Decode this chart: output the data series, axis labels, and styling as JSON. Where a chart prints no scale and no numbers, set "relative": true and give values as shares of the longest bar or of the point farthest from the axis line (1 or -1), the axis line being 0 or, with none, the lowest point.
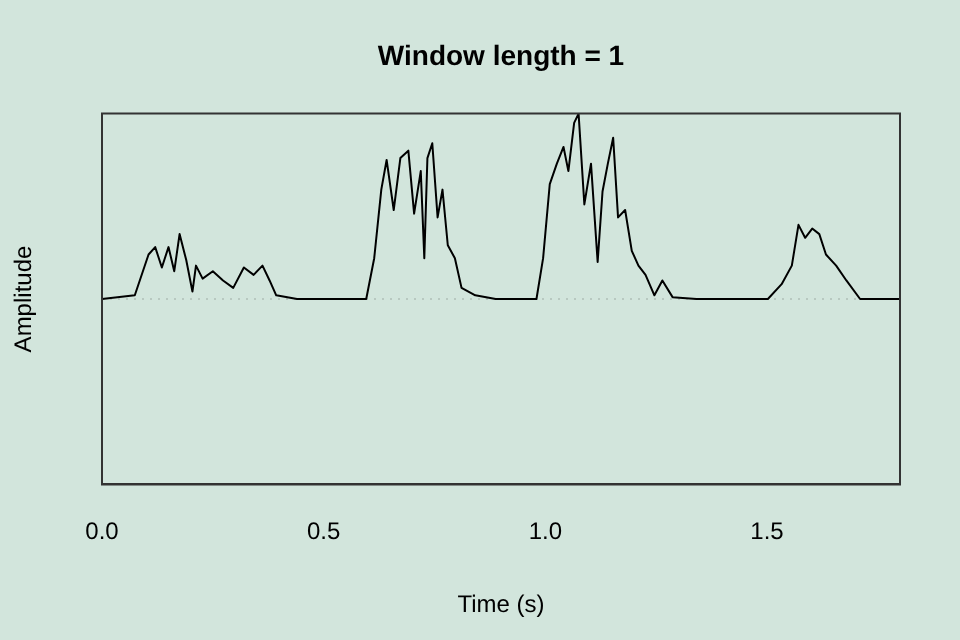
{
  "chart_data": {
    "type": "line",
    "title": "Window length = 1",
    "xlabel": "Time (s)",
    "ylabel": "Amplitude",
    "relative": true,
    "tick_labels": "x",
    "grid": false,
    "legend": false,
    "marker": "none",
    "line_style": "solid",
    "xlim": [
      0,
      1.8
    ],
    "xticks": [
      {
        "value": 0,
        "label": "0.0"
      },
      0.5,
      {
        "value": 1,
        "label": "1.0"
      },
      1.5
    ],
    "ref_lines": [
      {
        "axis": "y",
        "value": 0,
        "color": "#b8c8c0",
        "line_style": "dotted"
      }
    ],
    "series": [
      {
        "color": "#000000",
        "x": [
          0,
          0.074,
          0.105,
          0.12,
          0.135,
          0.15,
          0.163,
          0.175,
          0.19,
          0.204,
          0.212,
          0.227,
          0.25,
          0.273,
          0.296,
          0.32,
          0.342,
          0.362,
          0.378,
          0.393,
          0.44,
          0.596,
          0.614,
          0.63,
          0.642,
          0.658,
          0.673,
          0.691,
          0.704,
          0.719,
          0.727,
          0.734,
          0.745,
          0.757,
          0.768,
          0.78,
          0.796,
          0.811,
          0.842,
          0.888,
          0.98,
          0.995,
          1.01,
          1.026,
          1.041,
          1.052,
          1.065,
          1.075,
          1.088,
          1.103,
          1.118,
          1.129,
          1.141,
          1.153,
          1.164,
          1.18,
          1.195,
          1.21,
          1.226,
          1.246,
          1.264,
          1.287,
          1.341,
          1.502,
          1.533,
          1.556,
          1.571,
          1.586,
          1.602,
          1.618,
          1.633,
          1.656,
          1.679,
          1.71,
          1.8
        ],
        "values": [
          0,
          0.02,
          0.24,
          0.28,
          0.17,
          0.28,
          0.15,
          0.35,
          0.21,
          0.04,
          0.18,
          0.11,
          0.15,
          0.1,
          0.06,
          0.17,
          0.13,
          0.18,
          0.1,
          0.02,
          0,
          0,
          0.22,
          0.59,
          0.75,
          0.48,
          0.76,
          0.8,
          0.46,
          0.69,
          0.22,
          0.76,
          0.84,
          0.44,
          0.59,
          0.29,
          0.22,
          0.06,
          0.02,
          0,
          0,
          0.22,
          0.62,
          0.73,
          0.82,
          0.69,
          0.95,
          1,
          0.51,
          0.73,
          0.2,
          0.58,
          0.73,
          0.87,
          0.44,
          0.48,
          0.26,
          0.18,
          0.13,
          0.02,
          0.1,
          0.01,
          0,
          0,
          0.08,
          0.18,
          0.4,
          0.33,
          0.38,
          0.35,
          0.24,
          0.18,
          0.1,
          0,
          0
        ]
      }
    ]
  }
}
